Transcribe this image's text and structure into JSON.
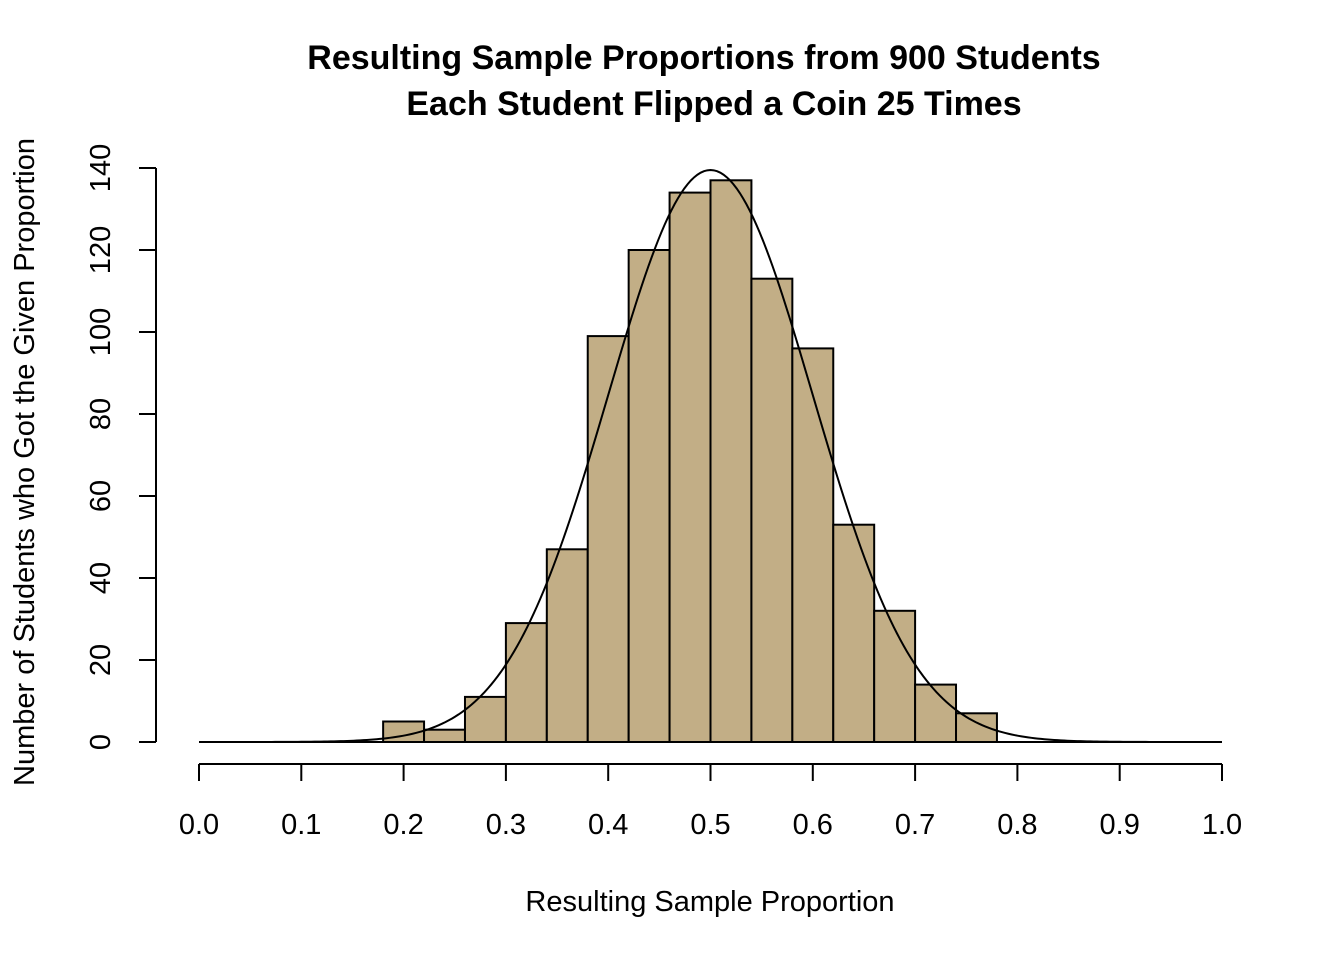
{
  "chart_data": {
    "type": "bar",
    "title_line1": "Resulting Sample Proportions from 900 Students",
    "title_line2": "Each Student Flipped a Coin 25 Times",
    "xlabel": "Resulting Sample Proportion",
    "ylabel": "Number of Students who Got the Given Proportion",
    "xlim": [
      0.0,
      1.0
    ],
    "ylim": [
      0,
      140
    ],
    "x_ticks": [
      "0.0",
      "0.1",
      "0.2",
      "0.3",
      "0.4",
      "0.5",
      "0.6",
      "0.7",
      "0.8",
      "0.9",
      "1.0"
    ],
    "y_ticks": [
      "0",
      "20",
      "40",
      "60",
      "80",
      "100",
      "120",
      "140"
    ],
    "bins": [
      {
        "from": 0.18,
        "to": 0.22,
        "count": 5
      },
      {
        "from": 0.22,
        "to": 0.26,
        "count": 3
      },
      {
        "from": 0.26,
        "to": 0.3,
        "count": 11
      },
      {
        "from": 0.3,
        "to": 0.34,
        "count": 29
      },
      {
        "from": 0.34,
        "to": 0.38,
        "count": 47
      },
      {
        "from": 0.38,
        "to": 0.42,
        "count": 99
      },
      {
        "from": 0.42,
        "to": 0.46,
        "count": 120
      },
      {
        "from": 0.46,
        "to": 0.5,
        "count": 134
      },
      {
        "from": 0.5,
        "to": 0.54,
        "count": 137
      },
      {
        "from": 0.54,
        "to": 0.58,
        "count": 113
      },
      {
        "from": 0.58,
        "to": 0.62,
        "count": 96
      },
      {
        "from": 0.62,
        "to": 0.66,
        "count": 53
      },
      {
        "from": 0.66,
        "to": 0.7,
        "count": 32
      },
      {
        "from": 0.7,
        "to": 0.74,
        "count": 14
      },
      {
        "from": 0.74,
        "to": 0.78,
        "count": 7
      }
    ],
    "normal_curve": {
      "mean": 0.5,
      "sd": 0.1,
      "peak": 139.5,
      "x_range": [
        0.02,
        0.98
      ]
    },
    "baseline_range": [
      0.0,
      1.0
    ],
    "bar_color": "#c2ae86",
    "grid": false,
    "legend": "none"
  }
}
